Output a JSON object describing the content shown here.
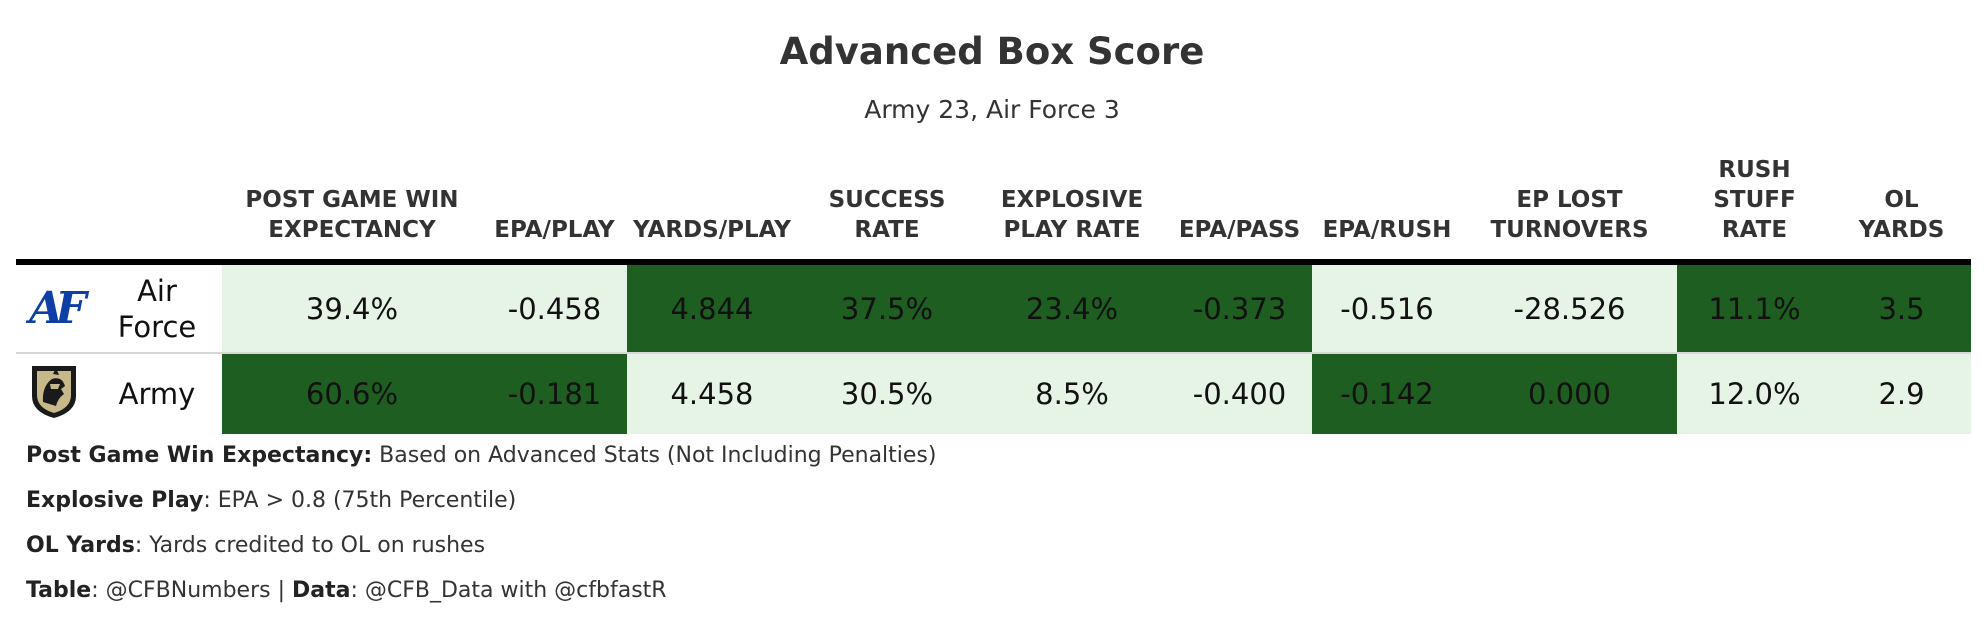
{
  "chart_data": {
    "type": "table",
    "title": "Advanced Box Score",
    "subtitle": "Army 23, Air Force 3",
    "columns": [
      {
        "key": "win_exp",
        "label": [
          "POST GAME WIN",
          "EXPECTANCY"
        ]
      },
      {
        "key": "epa_play",
        "label": [
          "EPA/PLAY"
        ]
      },
      {
        "key": "yards_play",
        "label": [
          "YARDS/PLAY"
        ]
      },
      {
        "key": "success_rate",
        "label": [
          "SUCCESS",
          "RATE"
        ]
      },
      {
        "key": "explosive",
        "label": [
          "EXPLOSIVE",
          "PLAY RATE"
        ]
      },
      {
        "key": "epa_pass",
        "label": [
          "EPA/PASS"
        ]
      },
      {
        "key": "epa_rush",
        "label": [
          "EPA/RUSH"
        ]
      },
      {
        "key": "ep_lost",
        "label": [
          "EP LOST",
          "TURNOVERS"
        ]
      },
      {
        "key": "stuff_rate",
        "label": [
          "RUSH",
          "STUFF",
          "RATE"
        ]
      },
      {
        "key": "ol_yards",
        "label": [
          "OL",
          "YARDS"
        ]
      }
    ],
    "rows": [
      {
        "team": [
          "Air",
          "Force"
        ],
        "logo": "air-force-logo",
        "cells": [
          {
            "value": "39.4%",
            "better": false
          },
          {
            "value": "-0.458",
            "better": false
          },
          {
            "value": "4.844",
            "better": true
          },
          {
            "value": "37.5%",
            "better": true
          },
          {
            "value": "23.4%",
            "better": true
          },
          {
            "value": "-0.373",
            "better": true
          },
          {
            "value": "-0.516",
            "better": false
          },
          {
            "value": "-28.526",
            "better": false
          },
          {
            "value": "11.1%",
            "better": true
          },
          {
            "value": "3.5",
            "better": true
          }
        ]
      },
      {
        "team": [
          "Army"
        ],
        "logo": "army-knight-logo",
        "cells": [
          {
            "value": "60.6%",
            "better": true
          },
          {
            "value": "-0.181",
            "better": true
          },
          {
            "value": "4.458",
            "better": false
          },
          {
            "value": "30.5%",
            "better": false
          },
          {
            "value": "8.5%",
            "better": false
          },
          {
            "value": "-0.400",
            "better": false
          },
          {
            "value": "-0.142",
            "better": true
          },
          {
            "value": "0.000",
            "better": true
          },
          {
            "value": "12.0%",
            "better": false
          },
          {
            "value": "2.9",
            "better": false
          }
        ]
      }
    ],
    "colors": {
      "better": "#1e5e20",
      "worse": "#e6f4e6"
    }
  },
  "logos": {
    "air_force_text": "AF"
  },
  "notes": [
    {
      "segments": [
        {
          "text": "Post Game Win Expectancy:",
          "bold": true
        },
        {
          "text": " Based on Advanced Stats (Not Including Penalties)",
          "bold": false
        }
      ]
    },
    {
      "segments": [
        {
          "text": "Explosive Play",
          "bold": true
        },
        {
          "text": ": EPA > 0.8 (75th Percentile)",
          "bold": false
        }
      ]
    },
    {
      "segments": [
        {
          "text": "OL Yards",
          "bold": true
        },
        {
          "text": ": Yards credited to OL on rushes",
          "bold": false
        }
      ]
    },
    {
      "segments": [
        {
          "text": "Table",
          "bold": true
        },
        {
          "text": ": @CFBNumbers | ",
          "bold": false
        },
        {
          "text": "Data",
          "bold": true
        },
        {
          "text": ": @CFB_Data with @cfbfastR",
          "bold": false
        }
      ]
    }
  ]
}
